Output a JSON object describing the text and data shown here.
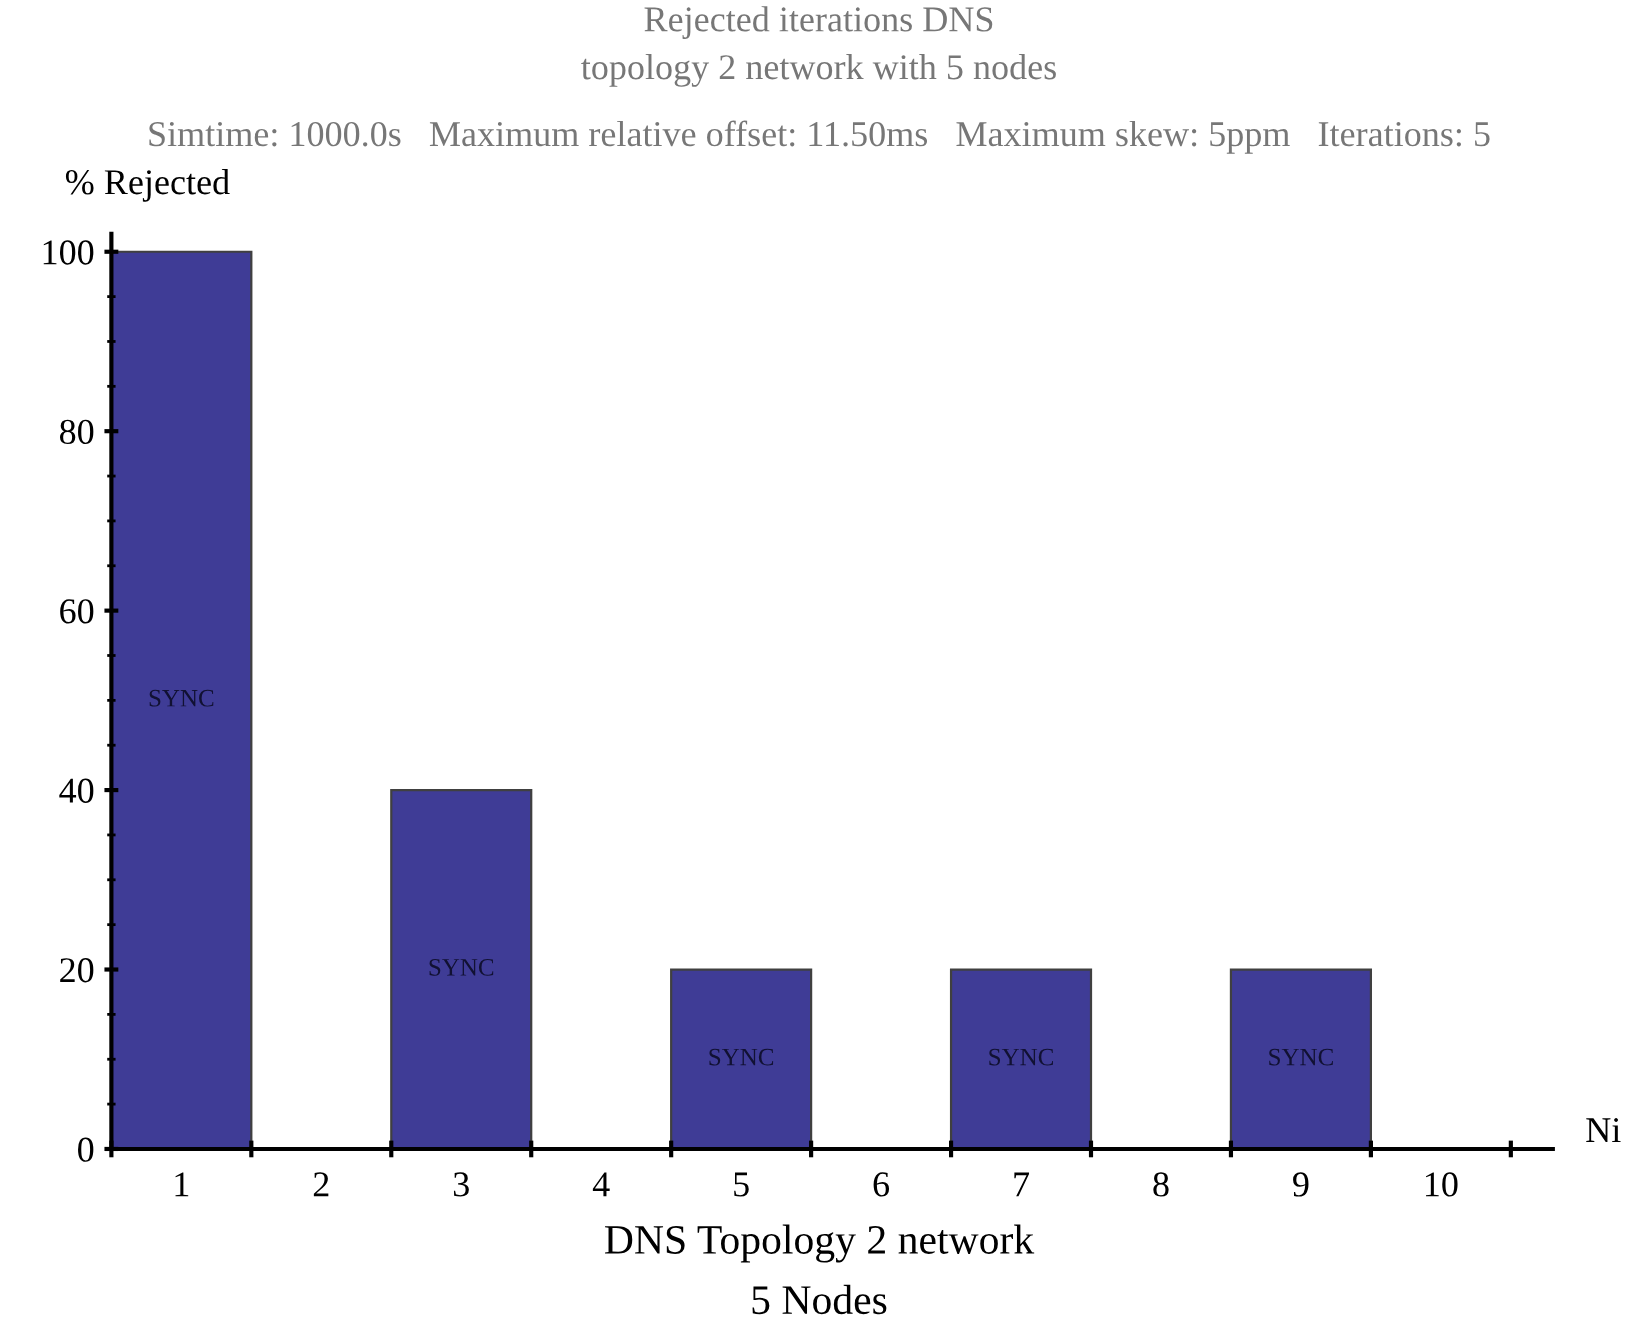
{
  "chart_data": {
    "type": "bar",
    "title": "Rejected iterations DNS\ntopology 2 network with 5 nodes",
    "subtitle": "Simtime: 1000.0s   Maximum relative offset: 11.50ms   Maximum skew: 5ppm   Iterations: 5",
    "xlabel": "Ni",
    "ylabel": "% Rejected",
    "annotations": [
      "DNS Topology 2 network",
      "5 Nodes"
    ],
    "categories": [
      "1",
      "2",
      "3",
      "4",
      "5",
      "6",
      "7",
      "8",
      "9",
      "10"
    ],
    "series": [
      {
        "name": "SYNC",
        "color": "#3f3c96",
        "values": [
          100,
          0,
          40,
          0,
          20,
          0,
          20,
          0,
          20,
          0
        ]
      }
    ],
    "ylim": [
      0,
      102
    ],
    "yticks": [
      0,
      20,
      40,
      60,
      80,
      100
    ],
    "grid": false
  }
}
